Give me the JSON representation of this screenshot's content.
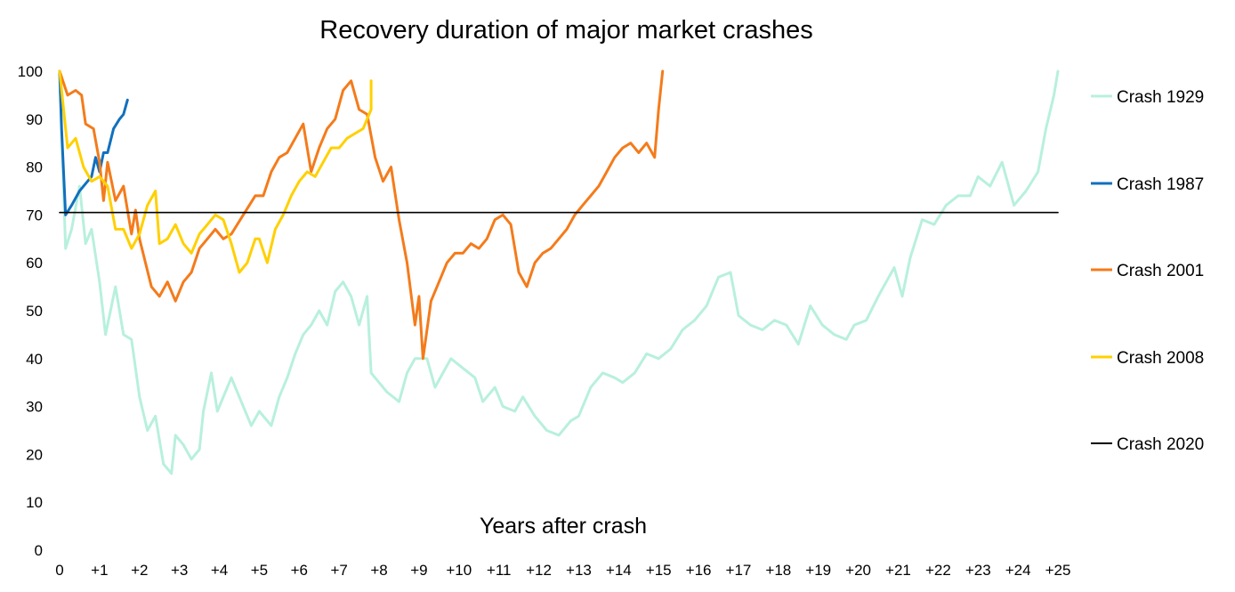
{
  "chart_data": {
    "type": "line",
    "title": "Recovery duration of major market crashes",
    "xlabel": "Years after crash",
    "ylabel": "",
    "xlim": [
      0,
      25
    ],
    "ylim": [
      0,
      100
    ],
    "x_tick_labels": [
      "0",
      "+1",
      "+2",
      "+3",
      "+4",
      "+5",
      "+6",
      "+7",
      "+8",
      "+9",
      "+10",
      "+11",
      "+12",
      "+13",
      "+14",
      "+15",
      "+16",
      "+17",
      "+18",
      "+19",
      "+20",
      "+21",
      "+22",
      "+23",
      "+24",
      "+25"
    ],
    "y_tick_labels": [
      "0",
      "10",
      "20",
      "30",
      "40",
      "50",
      "60",
      "70",
      "80",
      "90",
      "100"
    ],
    "legend_position": "right",
    "grid": false,
    "series": [
      {
        "name": "Crash 1929",
        "color": "#b8f0dd",
        "points": [
          [
            0,
            100
          ],
          [
            0.15,
            63
          ],
          [
            0.3,
            67
          ],
          [
            0.5,
            76
          ],
          [
            0.65,
            64
          ],
          [
            0.8,
            67
          ],
          [
            1.0,
            56
          ],
          [
            1.15,
            45
          ],
          [
            1.4,
            55
          ],
          [
            1.6,
            45
          ],
          [
            1.8,
            44
          ],
          [
            2.0,
            32
          ],
          [
            2.2,
            25
          ],
          [
            2.4,
            28
          ],
          [
            2.6,
            18
          ],
          [
            2.8,
            16
          ],
          [
            2.9,
            24
          ],
          [
            3.1,
            22
          ],
          [
            3.3,
            19
          ],
          [
            3.5,
            21
          ],
          [
            3.6,
            29
          ],
          [
            3.8,
            37
          ],
          [
            3.95,
            29
          ],
          [
            4.1,
            32
          ],
          [
            4.3,
            36
          ],
          [
            4.6,
            30
          ],
          [
            4.8,
            26
          ],
          [
            5.0,
            29
          ],
          [
            5.3,
            26
          ],
          [
            5.5,
            32
          ],
          [
            5.7,
            36
          ],
          [
            5.9,
            41
          ],
          [
            6.1,
            45
          ],
          [
            6.3,
            47
          ],
          [
            6.5,
            50
          ],
          [
            6.7,
            47
          ],
          [
            6.9,
            54
          ],
          [
            7.1,
            56
          ],
          [
            7.3,
            53
          ],
          [
            7.5,
            47
          ],
          [
            7.7,
            53
          ],
          [
            7.8,
            37
          ],
          [
            8.0,
            35
          ],
          [
            8.2,
            33
          ],
          [
            8.5,
            31
          ],
          [
            8.7,
            37
          ],
          [
            8.9,
            40
          ],
          [
            9.2,
            40
          ],
          [
            9.4,
            34
          ],
          [
            9.6,
            37
          ],
          [
            9.8,
            40
          ],
          [
            10.1,
            38
          ],
          [
            10.4,
            36
          ],
          [
            10.6,
            31
          ],
          [
            10.9,
            34
          ],
          [
            11.1,
            30
          ],
          [
            11.4,
            29
          ],
          [
            11.6,
            32
          ],
          [
            11.9,
            28
          ],
          [
            12.2,
            25
          ],
          [
            12.5,
            24
          ],
          [
            12.8,
            27
          ],
          [
            13.0,
            28
          ],
          [
            13.3,
            34
          ],
          [
            13.6,
            37
          ],
          [
            13.9,
            36
          ],
          [
            14.1,
            35
          ],
          [
            14.4,
            37
          ],
          [
            14.7,
            41
          ],
          [
            15.0,
            40
          ],
          [
            15.3,
            42
          ],
          [
            15.6,
            46
          ],
          [
            15.9,
            48
          ],
          [
            16.2,
            51
          ],
          [
            16.5,
            57
          ],
          [
            16.8,
            58
          ],
          [
            17.0,
            49
          ],
          [
            17.3,
            47
          ],
          [
            17.6,
            46
          ],
          [
            17.9,
            48
          ],
          [
            18.2,
            47
          ],
          [
            18.5,
            43
          ],
          [
            18.8,
            51
          ],
          [
            19.1,
            47
          ],
          [
            19.4,
            45
          ],
          [
            19.7,
            44
          ],
          [
            19.9,
            47
          ],
          [
            20.2,
            48
          ],
          [
            20.5,
            53
          ],
          [
            20.7,
            56
          ],
          [
            20.9,
            59
          ],
          [
            21.1,
            53
          ],
          [
            21.3,
            61
          ],
          [
            21.6,
            69
          ],
          [
            21.9,
            68
          ],
          [
            22.2,
            72
          ],
          [
            22.5,
            74
          ],
          [
            22.8,
            74
          ],
          [
            23.0,
            78
          ],
          [
            23.3,
            76
          ],
          [
            23.6,
            81
          ],
          [
            23.9,
            72
          ],
          [
            24.2,
            75
          ],
          [
            24.5,
            79
          ],
          [
            24.7,
            88
          ],
          [
            24.9,
            95
          ],
          [
            25.0,
            100
          ]
        ]
      },
      {
        "name": "Crash 1987",
        "color": "#1170bd",
        "points": [
          [
            0,
            100
          ],
          [
            0.05,
            88
          ],
          [
            0.15,
            70
          ],
          [
            0.3,
            72
          ],
          [
            0.5,
            75
          ],
          [
            0.7,
            77
          ],
          [
            0.8,
            78
          ],
          [
            0.9,
            82
          ],
          [
            1.0,
            79
          ],
          [
            1.1,
            83
          ],
          [
            1.2,
            83
          ],
          [
            1.35,
            88
          ],
          [
            1.5,
            90
          ],
          [
            1.6,
            91
          ],
          [
            1.7,
            94
          ]
        ]
      },
      {
        "name": "Crash 2001",
        "color": "#f47b1b",
        "points": [
          [
            0,
            100
          ],
          [
            0.2,
            95
          ],
          [
            0.4,
            96
          ],
          [
            0.55,
            95
          ],
          [
            0.65,
            89
          ],
          [
            0.85,
            88
          ],
          [
            1.0,
            81
          ],
          [
            1.1,
            73
          ],
          [
            1.2,
            81
          ],
          [
            1.4,
            73
          ],
          [
            1.6,
            76
          ],
          [
            1.8,
            66
          ],
          [
            1.9,
            71
          ],
          [
            2.0,
            65
          ],
          [
            2.3,
            55
          ],
          [
            2.5,
            53
          ],
          [
            2.7,
            56
          ],
          [
            2.9,
            52
          ],
          [
            3.1,
            56
          ],
          [
            3.3,
            58
          ],
          [
            3.5,
            63
          ],
          [
            3.7,
            65
          ],
          [
            3.9,
            67
          ],
          [
            4.1,
            65
          ],
          [
            4.3,
            66
          ],
          [
            4.6,
            70
          ],
          [
            4.9,
            74
          ],
          [
            5.1,
            74
          ],
          [
            5.3,
            79
          ],
          [
            5.5,
            82
          ],
          [
            5.7,
            83
          ],
          [
            5.9,
            86
          ],
          [
            6.1,
            89
          ],
          [
            6.3,
            79
          ],
          [
            6.5,
            84
          ],
          [
            6.7,
            88
          ],
          [
            6.9,
            90
          ],
          [
            7.1,
            96
          ],
          [
            7.3,
            98
          ],
          [
            7.5,
            92
          ],
          [
            7.7,
            91
          ],
          [
            7.9,
            82
          ],
          [
            8.1,
            77
          ],
          [
            8.3,
            80
          ],
          [
            8.5,
            69
          ],
          [
            8.7,
            60
          ],
          [
            8.9,
            47
          ],
          [
            9.0,
            53
          ],
          [
            9.1,
            40
          ],
          [
            9.3,
            52
          ],
          [
            9.5,
            56
          ],
          [
            9.7,
            60
          ],
          [
            9.9,
            62
          ],
          [
            10.1,
            62
          ],
          [
            10.3,
            64
          ],
          [
            10.5,
            63
          ],
          [
            10.7,
            65
          ],
          [
            10.9,
            69
          ],
          [
            11.1,
            70
          ],
          [
            11.3,
            68
          ],
          [
            11.5,
            58
          ],
          [
            11.7,
            55
          ],
          [
            11.9,
            60
          ],
          [
            12.1,
            62
          ],
          [
            12.3,
            63
          ],
          [
            12.5,
            65
          ],
          [
            12.7,
            67
          ],
          [
            12.9,
            70
          ],
          [
            13.1,
            72
          ],
          [
            13.3,
            74
          ],
          [
            13.5,
            76
          ],
          [
            13.7,
            79
          ],
          [
            13.9,
            82
          ],
          [
            14.1,
            84
          ],
          [
            14.3,
            85
          ],
          [
            14.5,
            83
          ],
          [
            14.7,
            85
          ],
          [
            14.9,
            82
          ],
          [
            15.0,
            92
          ],
          [
            15.1,
            100
          ]
        ]
      },
      {
        "name": "Crash 2008",
        "color": "#ffd000",
        "points": [
          [
            0,
            100
          ],
          [
            0.2,
            84
          ],
          [
            0.4,
            86
          ],
          [
            0.6,
            80
          ],
          [
            0.8,
            77
          ],
          [
            1.0,
            78
          ],
          [
            1.2,
            76
          ],
          [
            1.4,
            67
          ],
          [
            1.6,
            67
          ],
          [
            1.8,
            63
          ],
          [
            2.0,
            66
          ],
          [
            2.2,
            72
          ],
          [
            2.4,
            75
          ],
          [
            2.5,
            64
          ],
          [
            2.7,
            65
          ],
          [
            2.9,
            68
          ],
          [
            3.1,
            64
          ],
          [
            3.3,
            62
          ],
          [
            3.5,
            66
          ],
          [
            3.7,
            68
          ],
          [
            3.9,
            70
          ],
          [
            4.1,
            69
          ],
          [
            4.3,
            64
          ],
          [
            4.5,
            58
          ],
          [
            4.7,
            60
          ],
          [
            4.9,
            65
          ],
          [
            5.0,
            65
          ],
          [
            5.2,
            60
          ],
          [
            5.4,
            67
          ],
          [
            5.6,
            70
          ],
          [
            5.8,
            74
          ],
          [
            6.0,
            77
          ],
          [
            6.2,
            79
          ],
          [
            6.4,
            78
          ],
          [
            6.6,
            81
          ],
          [
            6.8,
            84
          ],
          [
            7.0,
            84
          ],
          [
            7.2,
            86
          ],
          [
            7.4,
            87
          ],
          [
            7.6,
            88
          ],
          [
            7.8,
            92
          ],
          [
            7.8,
            98
          ]
        ]
      },
      {
        "name": "Crash 2020",
        "color": "#000000",
        "points": [
          [
            0,
            70.5
          ],
          [
            25,
            70.5
          ]
        ]
      }
    ]
  }
}
